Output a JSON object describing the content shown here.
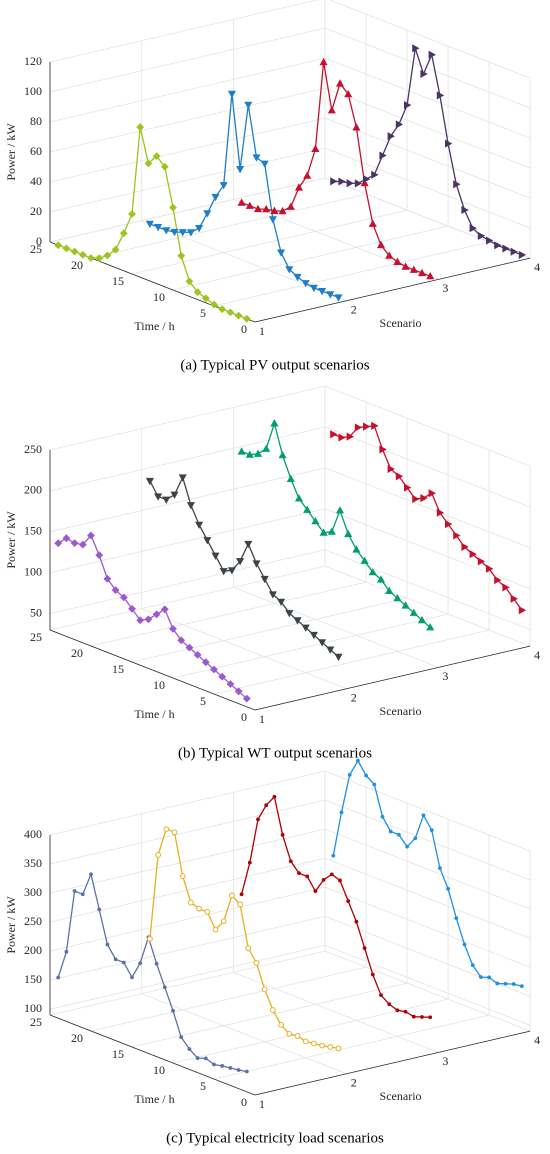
{
  "chart_data": [
    {
      "type": "line3d",
      "caption": "(a) Typical PV output scenarios",
      "xlabel": "Time / h",
      "ylabel": "Scenario",
      "zlabel": "Power / kW",
      "xlim": [
        0,
        25
      ],
      "xticks": [
        0,
        5,
        10,
        15,
        20,
        25
      ],
      "ylim": [
        1,
        4
      ],
      "yticks": [
        1,
        2,
        3,
        4
      ],
      "zlim": [
        0,
        120
      ],
      "zticks": [
        0,
        20,
        40,
        60,
        80,
        100,
        120
      ],
      "x": [
        1,
        2,
        3,
        4,
        5,
        6,
        7,
        8,
        9,
        10,
        11,
        12,
        13,
        14,
        15,
        16,
        17,
        18,
        19,
        20,
        21,
        22,
        23,
        24
      ],
      "series": [
        {
          "scenario": 1,
          "color": "#9dc41f",
          "marker": "diamond",
          "values": [
            0,
            0,
            0,
            0,
            1,
            3,
            5,
            10,
            25,
            55,
            80,
            85,
            78,
            100,
            40,
            25,
            12,
            6,
            2,
            0,
            0,
            0,
            0,
            0
          ]
        },
        {
          "scenario": 2,
          "color": "#1f7fc6",
          "marker": "triangle-down",
          "values": [
            0,
            0,
            0,
            0,
            1,
            3,
            6,
            15,
            35,
            70,
            72,
            105,
            60,
            108,
            45,
            35,
            22,
            10,
            5,
            3,
            1,
            0,
            0,
            0
          ]
        },
        {
          "scenario": 3,
          "color": "#c8102e",
          "marker": "triangle-up",
          "values": [
            0,
            0,
            0,
            0,
            1,
            3,
            8,
            20,
            45,
            80,
            100,
            105,
            85,
            115,
            55,
            35,
            25,
            10,
            5,
            3,
            2,
            0,
            0,
            0
          ]
        },
        {
          "scenario": 4,
          "color": "#4b3566",
          "marker": "triangle-right",
          "values": [
            0,
            0,
            0,
            0,
            1,
            2,
            5,
            15,
            30,
            55,
            85,
            110,
            95,
            110,
            70,
            55,
            45,
            30,
            15,
            10,
            5,
            3,
            2,
            0
          ]
        }
      ]
    },
    {
      "type": "line3d",
      "caption": "(b) Typical WT output scenarios",
      "xlabel": "Time / h",
      "ylabel": "Scenario",
      "zlabel": "Power / kW",
      "xlim": [
        0,
        25
      ],
      "xticks": [
        0,
        5,
        10,
        15,
        20,
        25
      ],
      "ylim": [
        1,
        4
      ],
      "yticks": [
        1,
        2,
        3,
        4
      ],
      "zlim": [
        30,
        250
      ],
      "zticks": [
        50,
        100,
        150,
        200,
        250
      ],
      "x": [
        1,
        2,
        3,
        4,
        5,
        6,
        7,
        8,
        9,
        10,
        11,
        12,
        13,
        14,
        15,
        16,
        17,
        18,
        19,
        20,
        21,
        22,
        23,
        24
      ],
      "series": [
        {
          "scenario": 1,
          "color": "#9b59d0",
          "marker": "diamond",
          "values": [
            40,
            45,
            50,
            55,
            60,
            65,
            70,
            75,
            80,
            90,
            110,
            100,
            90,
            85,
            95,
            105,
            110,
            120,
            145,
            165,
            150,
            148,
            150,
            140
          ]
        },
        {
          "scenario": 2,
          "color": "#3d4448",
          "marker": "triangle-down",
          "values": [
            65,
            70,
            75,
            80,
            85,
            90,
            95,
            105,
            110,
            125,
            140,
            160,
            135,
            120,
            115,
            130,
            145,
            160,
            180,
            210,
            185,
            175,
            175,
            190
          ]
        },
        {
          "scenario": 3,
          "color": "#009e73",
          "marker": "triangle-up",
          "values": [
            75,
            80,
            85,
            90,
            95,
            100,
            110,
            115,
            125,
            135,
            150,
            175,
            145,
            140,
            150,
            160,
            170,
            190,
            215,
            250,
            215,
            205,
            200,
            200
          ]
        },
        {
          "scenario": 4,
          "color": "#c8102e",
          "marker": "triangle-right",
          "values": [
            70,
            80,
            90,
            95,
            105,
            110,
            115,
            120,
            130,
            140,
            150,
            170,
            160,
            155,
            165,
            175,
            180,
            200,
            225,
            220,
            215,
            200,
            195,
            195
          ]
        }
      ]
    },
    {
      "type": "line3d",
      "caption": "(c) Typical electricity load scenarios",
      "xlabel": "Time / h",
      "ylabel": "Scenario",
      "zlabel": "Power / kW",
      "xlim": [
        0,
        25
      ],
      "xticks": [
        0,
        5,
        10,
        15,
        20,
        25
      ],
      "ylim": [
        1,
        4
      ],
      "yticks": [
        1,
        2,
        3,
        4
      ],
      "zlim": [
        90,
        400
      ],
      "zticks": [
        100,
        150,
        200,
        250,
        300,
        350,
        400
      ],
      "x": [
        1,
        2,
        3,
        4,
        5,
        6,
        7,
        8,
        9,
        10,
        11,
        12,
        13,
        14,
        15,
        16,
        17,
        18,
        19,
        20,
        21,
        22,
        23,
        24
      ],
      "series": [
        {
          "scenario": 1,
          "color": "#5a72a8",
          "marker": "dot",
          "values": [
            125,
            122,
            120,
            118,
            115,
            120,
            115,
            125,
            140,
            180,
            215,
            250,
            290,
            240,
            210,
            230,
            230,
            250,
            305,
            360,
            320,
            320,
            210,
            160
          ]
        },
        {
          "scenario": 2,
          "color": "#e6b020",
          "marker": "circle",
          "values": [
            128,
            125,
            122,
            120,
            118,
            122,
            120,
            130,
            150,
            180,
            220,
            240,
            310,
            320,
            270,
            250,
            275,
            275,
            280,
            320,
            390,
            390,
            340,
            190
          ]
        },
        {
          "scenario": 3,
          "color": "#b00000",
          "marker": "dot",
          "values": [
            145,
            140,
            135,
            138,
            135,
            140,
            150,
            180,
            220,
            260,
            290,
            320,
            325,
            310,
            285,
            305,
            305,
            320,
            360,
            420,
            400,
            370,
            290,
            230
          ]
        },
        {
          "scenario": 4,
          "color": "#1e90e6",
          "marker": "dot",
          "values": [
            162,
            160,
            155,
            150,
            155,
            150,
            165,
            195,
            235,
            280,
            310,
            370,
            390,
            345,
            325,
            340,
            340,
            360,
            410,
            420,
            440,
            410,
            340,
            260
          ]
        }
      ]
    }
  ]
}
